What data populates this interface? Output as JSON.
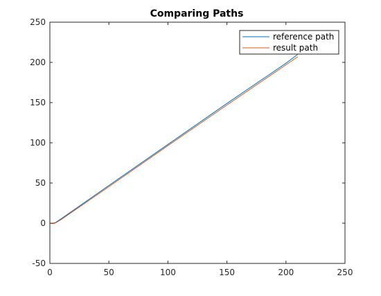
{
  "chart_data": {
    "type": "line",
    "title": "Comparing Paths",
    "xlabel": "",
    "ylabel": "",
    "xlim": [
      0,
      250
    ],
    "ylim": [
      -50,
      250
    ],
    "xticks": [
      0,
      50,
      100,
      150,
      200,
      250
    ],
    "yticks": [
      -50,
      0,
      50,
      100,
      150,
      200,
      250
    ],
    "xtick_labels": [
      "0",
      "50",
      "100",
      "150",
      "200",
      "250"
    ],
    "ytick_labels": [
      "-50",
      "0",
      "50",
      "100",
      "150",
      "200",
      "250"
    ],
    "grid": false,
    "legend_position": "top-right",
    "series": [
      {
        "name": "reference path",
        "color": "#0072bd",
        "x": [
          0,
          3,
          5,
          10,
          50,
          100,
          150,
          200,
          210
        ],
        "y": [
          0,
          0,
          1,
          6,
          47,
          98,
          149,
          199,
          210
        ]
      },
      {
        "name": "result path",
        "color": "#d95319",
        "x": [
          0,
          3,
          5,
          10,
          50,
          100,
          150,
          200,
          210
        ],
        "y": [
          0,
          -0.5,
          0.5,
          5,
          45.5,
          96.5,
          147,
          197,
          207
        ]
      }
    ]
  }
}
